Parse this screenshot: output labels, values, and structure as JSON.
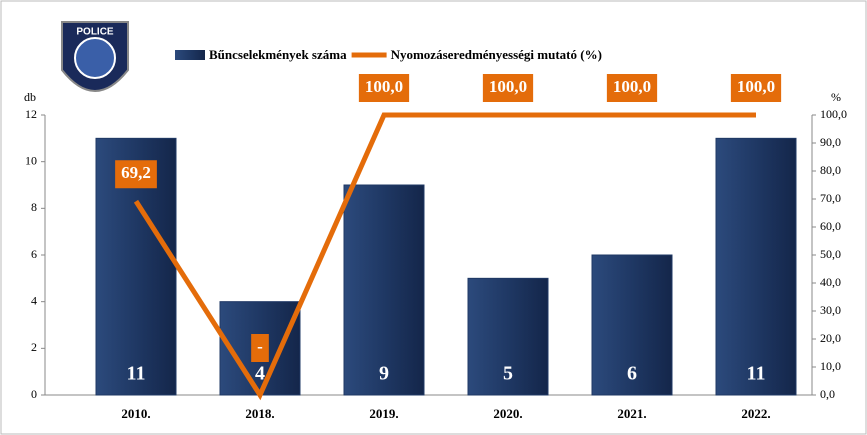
{
  "logo_text": "POLICE",
  "chart_data": {
    "type": "bar-line",
    "categories": [
      "2010.",
      "2018.",
      "2019.",
      "2020.",
      "2021.",
      "2022."
    ],
    "series": [
      {
        "name": "Bűncselekmények száma",
        "type": "bar",
        "color": "#1f3864",
        "values": [
          11,
          4,
          9,
          5,
          6,
          11
        ]
      },
      {
        "name": "Nyomozáseredményességi mutató (%)",
        "type": "line",
        "axis": "y2",
        "color": "#e46c0a",
        "values": [
          69.2,
          0,
          100,
          100,
          100,
          100
        ],
        "value_labels": [
          "69,2",
          "-",
          "100,0",
          "100,0",
          "100,0",
          "100,0"
        ]
      }
    ],
    "ylabel": "db",
    "y2label": "%",
    "ylim": [
      0,
      12
    ],
    "yticks": [
      0,
      2,
      4,
      6,
      8,
      10,
      12
    ],
    "y2lim": [
      0,
      100
    ],
    "y2ticks": [
      {
        "value": 0,
        "label": "0,0"
      },
      {
        "value": 10,
        "label": "10,0"
      },
      {
        "value": 20,
        "label": "20,0"
      },
      {
        "value": 30,
        "label": "30,0"
      },
      {
        "value": 40,
        "label": "40,0"
      },
      {
        "value": 50,
        "label": "50,0"
      },
      {
        "value": 60,
        "label": "60,0"
      },
      {
        "value": 70,
        "label": "70,0"
      },
      {
        "value": 80,
        "label": "80,0"
      },
      {
        "value": 90,
        "label": "90,0"
      },
      {
        "value": 100,
        "label": "100,0"
      }
    ],
    "legend": "top",
    "grid": false
  }
}
